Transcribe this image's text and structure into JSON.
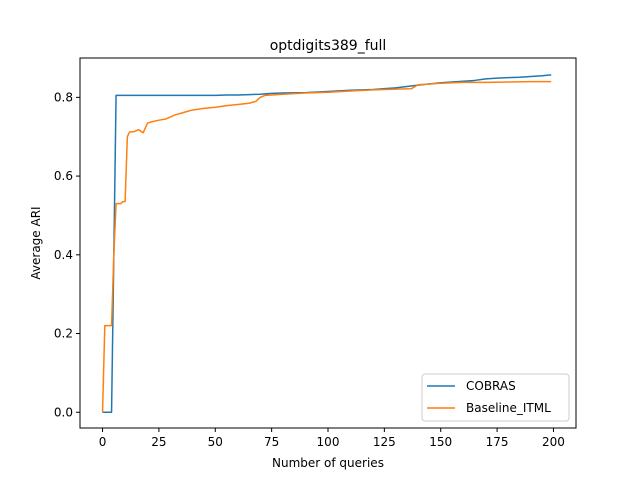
{
  "chart_data": {
    "type": "line",
    "title": "optdigits389_full",
    "xlabel": "Number of queries",
    "ylabel": "Average ARI",
    "xlim": [
      -10,
      210
    ],
    "ylim": [
      -0.04,
      0.9
    ],
    "xticks": [
      0,
      25,
      50,
      75,
      100,
      125,
      150,
      175,
      200
    ],
    "yticks": [
      0.0,
      0.2,
      0.4,
      0.6,
      0.8
    ],
    "xtick_labels": [
      "0",
      "25",
      "50",
      "75",
      "100",
      "125",
      "150",
      "175",
      "200"
    ],
    "ytick_labels": [
      "0.0",
      "0.2",
      "0.4",
      "0.6",
      "0.8"
    ],
    "grid": false,
    "legend_position": "lower-right",
    "series": [
      {
        "name": "COBRAS",
        "color": "#1f77b4",
        "x": [
          0,
          2,
          4,
          5,
          6,
          10,
          20,
          30,
          40,
          50,
          55,
          60,
          65,
          70,
          75,
          80,
          90,
          100,
          110,
          120,
          130,
          140,
          150,
          160,
          165,
          170,
          175,
          180,
          185,
          190,
          195,
          199
        ],
        "y": [
          0.0,
          0.0,
          0.0,
          0.4,
          0.805,
          0.805,
          0.805,
          0.805,
          0.805,
          0.805,
          0.806,
          0.806,
          0.807,
          0.808,
          0.81,
          0.811,
          0.812,
          0.815,
          0.818,
          0.82,
          0.824,
          0.831,
          0.837,
          0.841,
          0.843,
          0.847,
          0.849,
          0.85,
          0.851,
          0.853,
          0.855,
          0.857
        ]
      },
      {
        "name": "Baseline_ITML",
        "color": "#ff7f0e",
        "x": [
          0,
          1,
          2,
          3,
          4,
          5,
          6,
          7,
          8,
          9,
          10,
          11,
          12,
          14,
          16,
          18,
          20,
          22,
          25,
          28,
          30,
          32,
          35,
          38,
          40,
          45,
          50,
          55,
          60,
          65,
          68,
          70,
          72,
          75,
          80,
          90,
          100,
          110,
          120,
          130,
          137,
          140,
          150,
          160,
          170,
          180,
          190,
          199
        ],
        "y": [
          0.0,
          0.22,
          0.22,
          0.22,
          0.22,
          0.4,
          0.53,
          0.53,
          0.53,
          0.535,
          0.535,
          0.7,
          0.712,
          0.713,
          0.718,
          0.71,
          0.735,
          0.738,
          0.742,
          0.745,
          0.75,
          0.755,
          0.76,
          0.765,
          0.768,
          0.772,
          0.775,
          0.779,
          0.782,
          0.785,
          0.79,
          0.8,
          0.805,
          0.806,
          0.808,
          0.811,
          0.813,
          0.816,
          0.819,
          0.821,
          0.822,
          0.832,
          0.836,
          0.838,
          0.838,
          0.839,
          0.84,
          0.84
        ]
      }
    ]
  }
}
